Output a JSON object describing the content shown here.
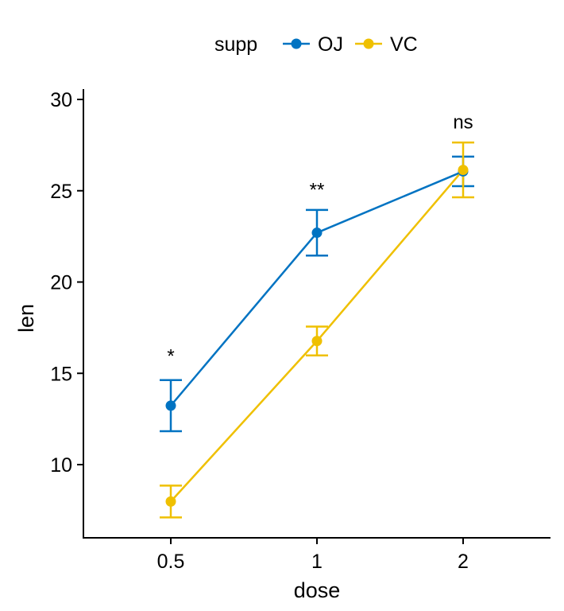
{
  "chart_data": {
    "type": "line",
    "xlabel": "dose",
    "ylabel": "len",
    "categories": [
      "0.5",
      "1",
      "2"
    ],
    "yticks": [
      "10",
      "15",
      "20",
      "25",
      "30"
    ],
    "ylim": [
      6,
      30
    ],
    "grid": false,
    "legend": {
      "title": "supp",
      "position": "top"
    },
    "series": [
      {
        "name": "OJ",
        "color": "#0073C2",
        "values": [
          13.23,
          22.7,
          26.06
        ],
        "err_low": [
          11.83,
          21.45,
          25.25
        ],
        "err_high": [
          14.63,
          23.95,
          26.87
        ]
      },
      {
        "name": "VC",
        "color": "#EFC000",
        "values": [
          7.98,
          16.77,
          26.14
        ],
        "err_low": [
          7.11,
          15.98,
          24.64
        ],
        "err_high": [
          8.85,
          17.56,
          27.64
        ]
      }
    ],
    "annotations": [
      {
        "x": "0.5",
        "y": 15.6,
        "text": "*"
      },
      {
        "x": "1",
        "y": 24.7,
        "text": "**"
      },
      {
        "x": "2",
        "y": 28.4,
        "text": "ns"
      }
    ]
  }
}
